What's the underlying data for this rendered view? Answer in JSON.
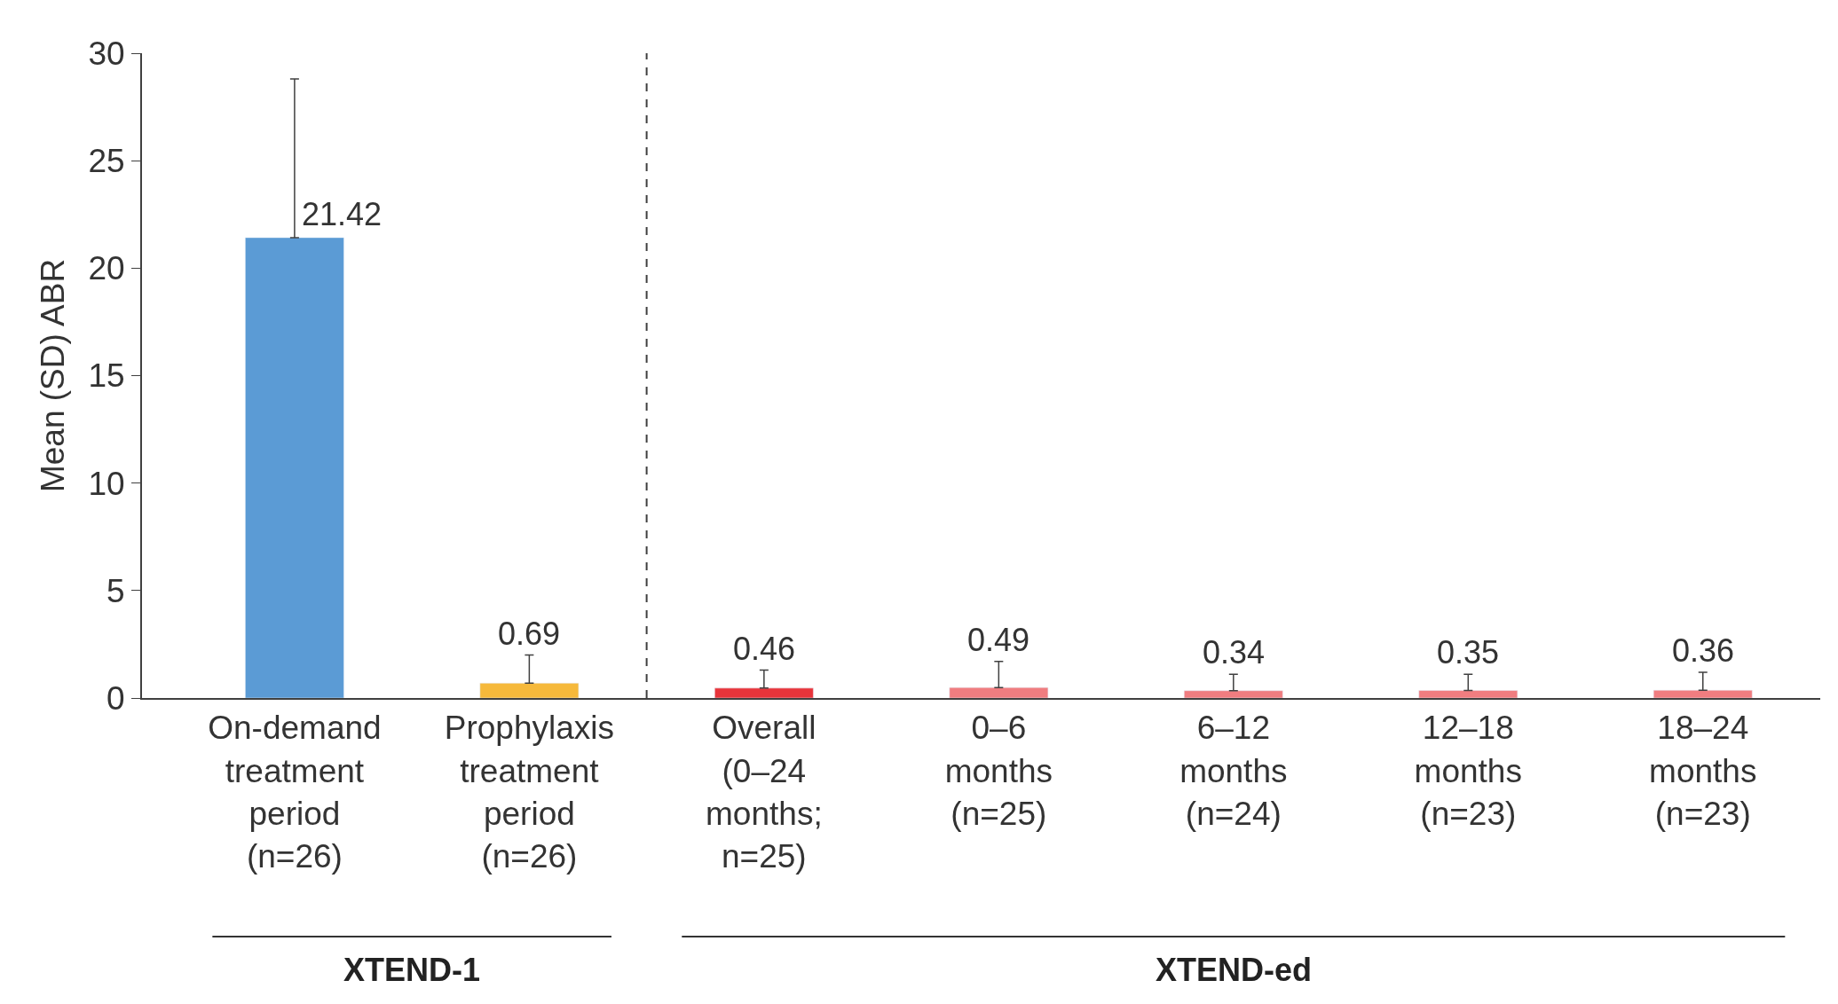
{
  "chart_data": {
    "type": "bar",
    "ylabel": "Mean (SD) ABR",
    "categories": [
      "On-demand\ntreatment\nperiod\n(n=26)",
      "Prophylaxis\ntreatment\nperiod\n(n=26)",
      "Overall\n(0–24\nmonths;\nn=25)",
      "0–6\nmonths\n(n=25)",
      "6–12\nmonths\n(n=24)",
      "12–18\nmonths\n(n=23)",
      "18–24\nmonths\n(n=23)"
    ],
    "values": [
      21.42,
      0.69,
      0.46,
      0.49,
      0.34,
      0.35,
      0.36
    ],
    "colors": [
      "#5b9bd5",
      "#f6b93b",
      "#e8343a",
      "#f07d80",
      "#f07d80",
      "#f07d80",
      "#f07d80"
    ],
    "errors": [
      [
        21.42,
        28.8
      ],
      [
        0.69,
        2.0
      ],
      [
        0.46,
        1.3
      ],
      [
        0.49,
        1.7
      ],
      [
        0.34,
        1.1
      ],
      [
        0.35,
        1.1
      ],
      [
        0.36,
        1.2
      ]
    ],
    "data_labels": true,
    "ylim": [
      0,
      30
    ],
    "yticks": [
      0,
      5,
      10,
      15,
      20,
      25,
      30
    ],
    "legend": false,
    "annotations": [
      "XTEND-1",
      "XTEND-ed"
    ]
  }
}
